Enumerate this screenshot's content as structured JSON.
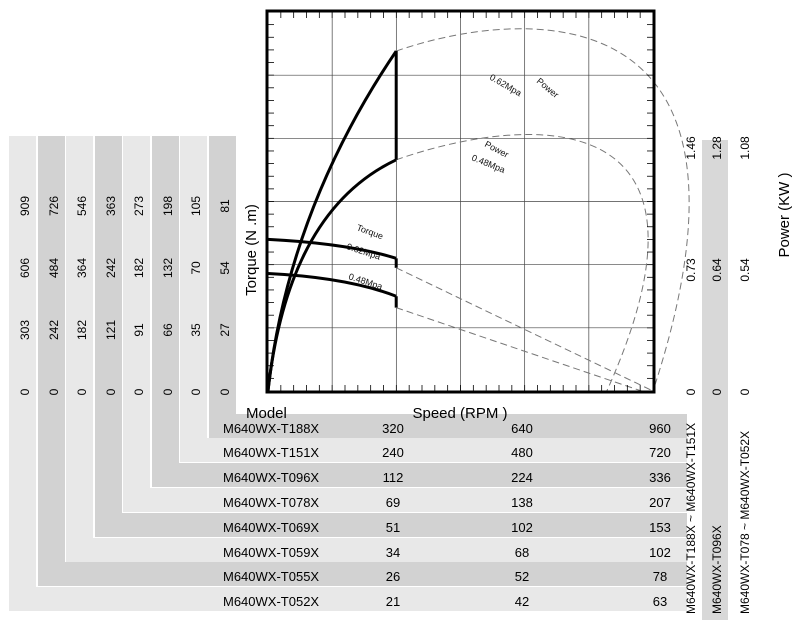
{
  "chart_data": {
    "type": "line",
    "axis_labels": {
      "y_left": "Torque (N .m)",
      "x": "Speed (RPM )",
      "model_header": "Model",
      "y_right": "Power (KW )"
    },
    "curve_labels": {
      "power_062": "Power",
      "power_062_pressure": "0.62Mpa",
      "power_048": "Power",
      "power_048_pressure": "0.48Mpa",
      "torque": "Torque",
      "torque_062_pressure": "0.62Mpa",
      "torque_048_pressure": "0.48Mpa"
    },
    "models": [
      {
        "name": "M640WX-T188X",
        "speeds": [
          320,
          640,
          960
        ],
        "torques": [
          "0",
          "27",
          "54",
          "81"
        ]
      },
      {
        "name": "M640WX-T151X",
        "speeds": [
          240,
          480,
          720
        ],
        "torques": [
          "0",
          "35",
          "70",
          "105"
        ]
      },
      {
        "name": "M640WX-T096X",
        "speeds": [
          112,
          224,
          336
        ],
        "torques": [
          "0",
          "66",
          "132",
          "198"
        ]
      },
      {
        "name": "M640WX-T078X",
        "speeds": [
          69,
          138,
          207
        ],
        "torques": [
          "0",
          "91",
          "182",
          "273"
        ]
      },
      {
        "name": "M640WX-T069X",
        "speeds": [
          51,
          102,
          153
        ],
        "torques": [
          "0",
          "121",
          "242",
          "363"
        ]
      },
      {
        "name": "M640WX-T059X",
        "speeds": [
          34,
          68,
          102
        ],
        "torques": [
          "0",
          "182",
          "364",
          "546"
        ]
      },
      {
        "name": "M640WX-T055X",
        "speeds": [
          26,
          52,
          78
        ],
        "torques": [
          "0",
          "242",
          "484",
          "726"
        ]
      },
      {
        "name": "M640WX-T052X",
        "speeds": [
          21,
          42,
          63
        ],
        "torques": [
          "0",
          "303",
          "606",
          "909"
        ]
      }
    ],
    "power_scales": [
      {
        "label": "M640WX-T188X ~ M640WX-T151X",
        "ticks": [
          "0",
          "0.73",
          "1.46"
        ]
      },
      {
        "label": "M640WX-T096X",
        "ticks": [
          "0",
          "0.64",
          "1.28"
        ]
      },
      {
        "label": "M640WX-T078 ~ M640WX-T052X",
        "ticks": [
          "0",
          "0.54",
          "1.08"
        ]
      }
    ],
    "series": [
      {
        "name": "Torque 0.62Mpa",
        "style": "solid",
        "x": [
          0,
          0.333,
          0.5,
          1.0
        ],
        "y": [
          0.4,
          0.35,
          0.25,
          0
        ]
      },
      {
        "name": "Torque 0.48Mpa",
        "style": "solid",
        "x": [
          0,
          0.333,
          0.5,
          0.97
        ],
        "y": [
          0.31,
          0.25,
          0.18,
          0
        ]
      },
      {
        "name": "Power 0.62Mpa",
        "style": "solid",
        "x": [
          0,
          0.333
        ],
        "y": [
          0,
          0.897
        ]
      },
      {
        "name": "Power 0.62Mpa",
        "style": "dashed",
        "x": [
          0.333,
          0.5,
          1.0
        ],
        "y": [
          0.897,
          0.94,
          0
        ]
      },
      {
        "name": "Power 0.48Mpa",
        "style": "solid",
        "x": [
          0,
          0.333
        ],
        "y": [
          0,
          0.61
        ]
      },
      {
        "name": "Power 0.48Mpa",
        "style": "dashed",
        "x": [
          0.333,
          0.5,
          0.88
        ],
        "y": [
          0.61,
          0.655,
          0
        ]
      }
    ],
    "grid": true
  }
}
